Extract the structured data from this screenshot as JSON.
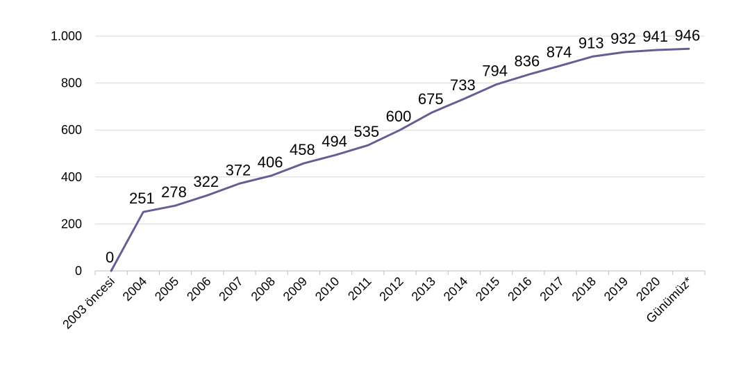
{
  "chart_data": {
    "type": "line",
    "title": "",
    "xlabel": "",
    "ylabel": "",
    "categories": [
      "2003 öncesi",
      "2004",
      "2005",
      "2006",
      "2007",
      "2008",
      "2009",
      "2010",
      "2011",
      "2012",
      "2013",
      "2014",
      "2015",
      "2016",
      "2017",
      "2018",
      "2019",
      "2020",
      "Günümüz*"
    ],
    "series": [
      {
        "values": [
          0,
          251,
          278,
          322,
          372,
          406,
          458,
          494,
          535,
          600,
          675,
          733,
          794,
          836,
          874,
          913,
          932,
          941,
          946
        ],
        "color": "#6b5b95"
      }
    ],
    "ylim": [
      0,
      1000
    ],
    "yticks": [
      0,
      200,
      400,
      600,
      800,
      1000
    ],
    "ytick_labels": [
      "0",
      "200",
      "400",
      "600",
      "800",
      "1.000"
    ],
    "grid": true,
    "legend": "none",
    "data_labels": true
  }
}
